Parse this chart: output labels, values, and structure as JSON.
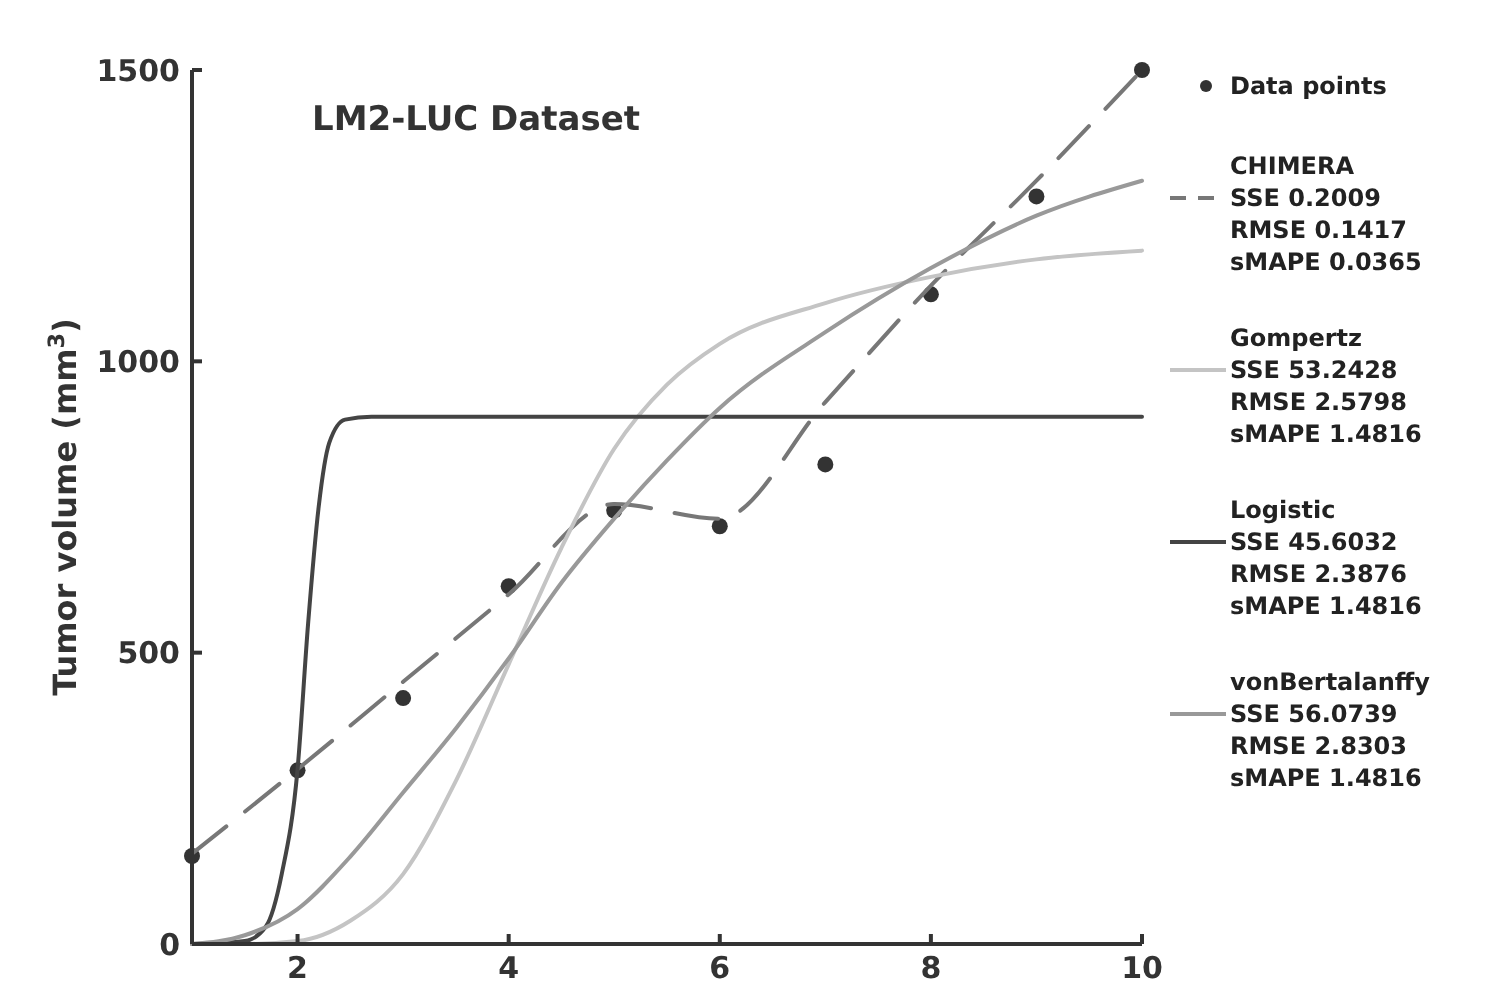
{
  "chart_data": {
    "type": "line",
    "title": "LM2-LUC Dataset",
    "ylabel": "Tumor volume (mm$^{3}$)",
    "xlim": [
      1,
      10
    ],
    "xticks": [
      2,
      4,
      6,
      8,
      10
    ],
    "ylim": [
      0,
      1500
    ],
    "yticks": [
      0,
      500,
      1000,
      1500
    ],
    "grid": false,
    "legend": "right",
    "series": [
      {
        "name": "Data points",
        "type": "scatter",
        "marker": "circle",
        "color": "#333333",
        "x": [
          1,
          2,
          3,
          4,
          5,
          6,
          7,
          8,
          9,
          10
        ],
        "values": [
          151,
          298,
          422,
          614,
          744,
          717,
          823,
          1115,
          1283,
          1500
        ]
      },
      {
        "name": "CHIMERA\nSSE 0.2009\nRMSE 0.1417\nsMAPE 0.0365",
        "line_style": "dashed",
        "color": "#777777",
        "x": [
          1,
          2,
          3,
          4,
          5,
          6,
          7,
          8,
          9,
          10
        ],
        "values": [
          155,
          300,
          450,
          600,
          755,
          730,
          930,
          1130,
          1310,
          1500
        ]
      },
      {
        "name": "Gompertz\nSSE 53.2428\nRMSE 2.5798\nsMAPE 1.4816",
        "line_style": "solid",
        "color": "#c4c4c4",
        "x": [
          1,
          1.5,
          2,
          2.5,
          3,
          3.5,
          4,
          4.5,
          5,
          5.5,
          6,
          7,
          8,
          9,
          10
        ],
        "values": [
          0,
          0,
          5,
          40,
          120,
          280,
          480,
          680,
          850,
          960,
          1030,
          1100,
          1145,
          1175,
          1190
        ]
      },
      {
        "name": "Logistic\nSSE 45.6032\nRMSE 2.3876\nsMAPE 1.4816",
        "line_style": "solid",
        "color": "#444444",
        "x": [
          1,
          1.5,
          1.7,
          1.85,
          2,
          2.1,
          2.2,
          2.3,
          2.45,
          2.7,
          10
        ],
        "values": [
          0,
          5,
          30,
          120,
          300,
          550,
          750,
          860,
          900,
          905,
          905
        ]
      },
      {
        "name": "vonBertalanffy\nSSE 56.0739\nRMSE 2.8303\nsMAPE 1.4816",
        "line_style": "solid",
        "color": "#999999",
        "x": [
          1,
          1.5,
          2,
          2.5,
          3,
          3.5,
          4,
          4.5,
          5,
          5.5,
          6,
          7,
          8,
          9,
          10
        ],
        "values": [
          0,
          15,
          60,
          150,
          260,
          370,
          490,
          620,
          730,
          830,
          920,
          1050,
          1160,
          1250,
          1310
        ]
      }
    ]
  }
}
